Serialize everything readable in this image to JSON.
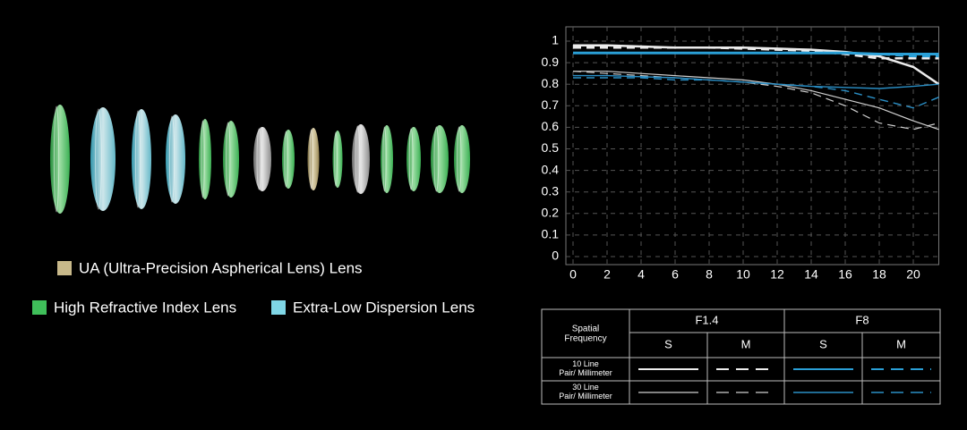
{
  "chart_data": {
    "type": "line",
    "x": [
      0,
      2,
      4,
      6,
      8,
      10,
      12,
      14,
      16,
      18,
      20,
      21.5
    ],
    "xlim": [
      0,
      21.5
    ],
    "ylim": [
      0,
      1
    ],
    "xticks": [
      0,
      2,
      4,
      6,
      8,
      10,
      12,
      14,
      16,
      18,
      20
    ],
    "yticks": [
      0,
      0.1,
      0.2,
      0.3,
      0.4,
      0.5,
      0.6,
      0.7,
      0.8,
      0.9,
      1
    ],
    "grid": true,
    "series": [
      {
        "color": "#ececec",
        "dash": false,
        "width": 2.5,
        "values": [
          0.98,
          0.98,
          0.975,
          0.97,
          0.97,
          0.97,
          0.965,
          0.96,
          0.95,
          0.93,
          0.88,
          0.8
        ]
      },
      {
        "color": "#ececec",
        "dash": true,
        "width": 2.5,
        "values": [
          0.97,
          0.97,
          0.97,
          0.97,
          0.97,
          0.965,
          0.96,
          0.955,
          0.94,
          0.92,
          0.92,
          0.92
        ]
      },
      {
        "color": "#2a9fd6",
        "dash": false,
        "width": 3,
        "values": [
          0.945,
          0.945,
          0.945,
          0.945,
          0.945,
          0.945,
          0.945,
          0.945,
          0.945,
          0.94,
          0.94,
          0.94
        ]
      },
      {
        "color": "#2a9fd6",
        "dash": true,
        "width": 2.5,
        "values": [
          0.945,
          0.945,
          0.945,
          0.945,
          0.945,
          0.945,
          0.945,
          0.945,
          0.945,
          0.94,
          0.93,
          0.93
        ]
      },
      {
        "color": "#cfcfcf",
        "dash": false,
        "width": 1.2,
        "values": [
          0.86,
          0.86,
          0.85,
          0.84,
          0.83,
          0.82,
          0.8,
          0.77,
          0.73,
          0.69,
          0.63,
          0.59
        ]
      },
      {
        "color": "#cfcfcf",
        "dash": true,
        "width": 1.2,
        "values": [
          0.86,
          0.85,
          0.84,
          0.83,
          0.82,
          0.81,
          0.79,
          0.76,
          0.7,
          0.62,
          0.59,
          0.62
        ]
      },
      {
        "color": "#2a8fc6",
        "dash": false,
        "width": 1.4,
        "values": [
          0.84,
          0.84,
          0.835,
          0.83,
          0.82,
          0.81,
          0.8,
          0.79,
          0.785,
          0.78,
          0.79,
          0.8
        ]
      },
      {
        "color": "#2a8fc6",
        "dash": true,
        "width": 1.4,
        "values": [
          0.83,
          0.83,
          0.83,
          0.82,
          0.82,
          0.81,
          0.8,
          0.79,
          0.77,
          0.73,
          0.69,
          0.74
        ]
      }
    ]
  },
  "legend_table": {
    "corner": "Spatial Frequency",
    "apertures": [
      "F1.4",
      "F8"
    ],
    "directions": [
      "S",
      "M",
      "S",
      "M"
    ],
    "rows": [
      "10 Line Pair/ Millimeter",
      "30 Line Pair/ Millimeter"
    ]
  },
  "lens_legend": [
    {
      "label": "UA (Ultra-Precision Aspherical Lens) Lens",
      "color": "#c8b98a"
    },
    {
      "label": "High Refractive Index Lens",
      "color": "#3fbf5a"
    },
    {
      "label": "Extra-Low Dispersion Lens",
      "color": "#7fd6e6"
    }
  ]
}
